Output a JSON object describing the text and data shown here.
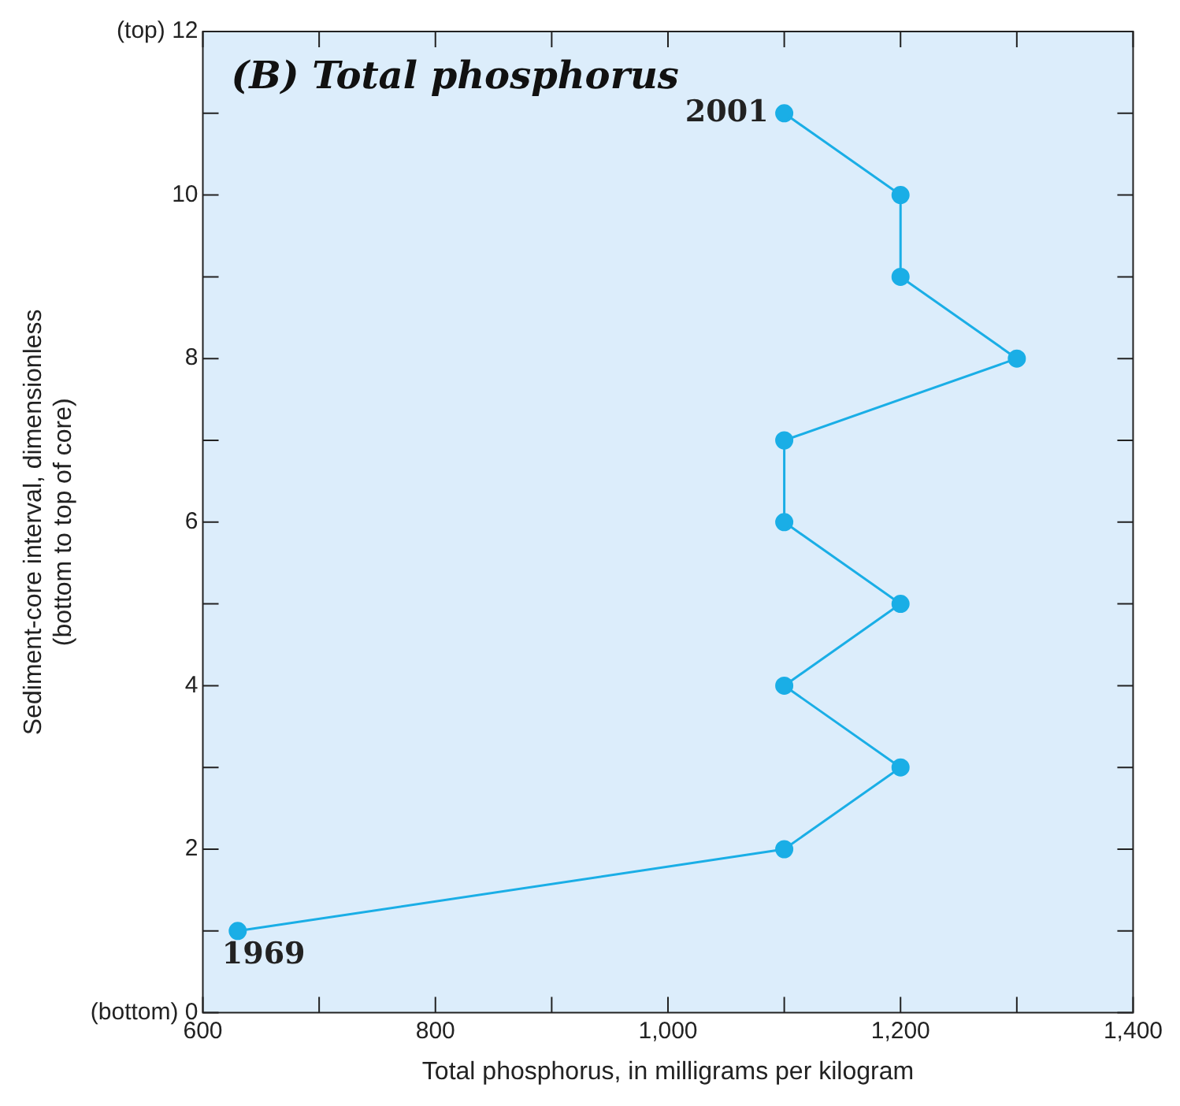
{
  "chart_data": {
    "type": "line",
    "title": "(B) Total phosphorus",
    "xlabel": "Total phosphorus, in milligrams per kilogram",
    "ylabel": "Sediment-core interval, dimensionless\n(bottom to top of core)",
    "series": [
      {
        "color": "#1aaee6",
        "x": [
          630,
          1100,
          1200,
          1100,
          1200,
          1100,
          1100,
          1300,
          1200,
          1200,
          1100
        ],
        "values": [
          1,
          2,
          3,
          4,
          5,
          6,
          7,
          8,
          9,
          10,
          11
        ]
      }
    ],
    "xlim": [
      600,
      1400
    ],
    "xticks": [
      {
        "value": 600,
        "label": "600"
      },
      {
        "value": 700,
        "label": null
      },
      {
        "value": 800,
        "label": "800"
      },
      {
        "value": 900,
        "label": null
      },
      {
        "value": 1000,
        "label": "1,000"
      },
      {
        "value": 1100,
        "label": null
      },
      {
        "value": 1200,
        "label": "1,200"
      },
      {
        "value": 1300,
        "label": null
      },
      {
        "value": 1400,
        "label": "1,400"
      }
    ],
    "ylim": [
      0,
      12
    ],
    "yticks": [
      {
        "value": 0,
        "label": "(bottom) 0"
      },
      {
        "value": 1,
        "label": null
      },
      2,
      {
        "value": 3,
        "label": null
      },
      4,
      {
        "value": 5,
        "label": null
      },
      6,
      {
        "value": 7,
        "label": null
      },
      8,
      {
        "value": 9,
        "label": null
      },
      10,
      {
        "value": 11,
        "label": null
      },
      {
        "value": 12,
        "label": "(top) 12"
      }
    ],
    "marker": "circle",
    "line_style": "solid",
    "grid": false,
    "legend": false,
    "annotations": [
      {
        "text": "2001",
        "x": 1100,
        "y": 11
      },
      {
        "text": "1969",
        "x": 630,
        "y": 1
      }
    ]
  }
}
